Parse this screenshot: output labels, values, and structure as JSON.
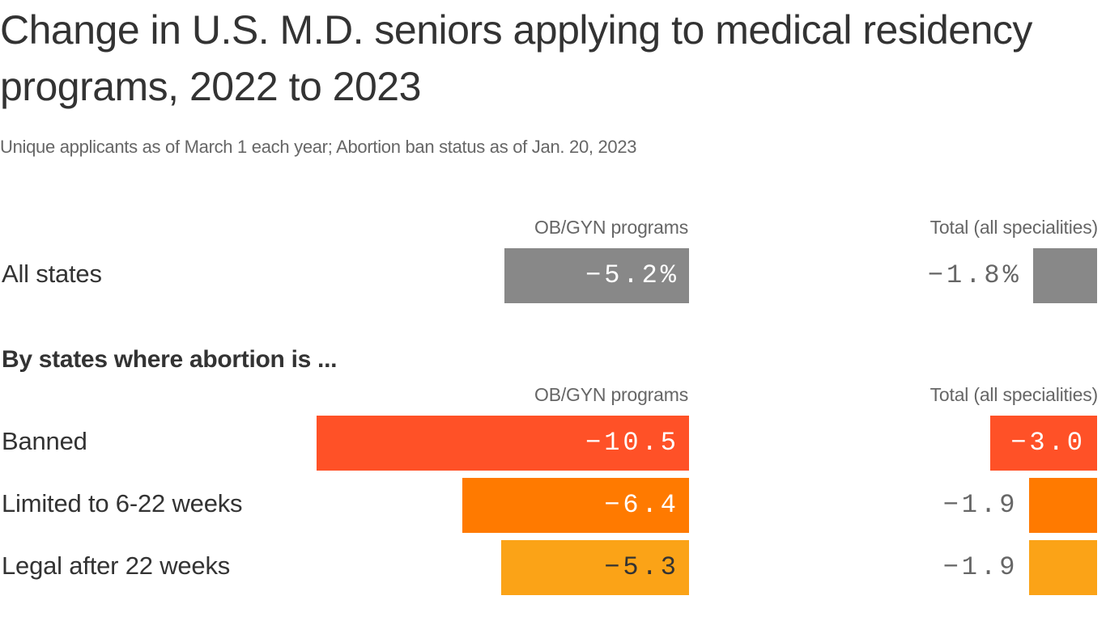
{
  "title": "Change in U.S. M.D. seniors applying to medical residency programs, 2022 to 2023",
  "subtitle": "Unique applicants as of March 1 each year; Abortion ban status as of Jan. 20, 2023",
  "section_heading": "By states where abortion is ...",
  "column_labels": {
    "obgyn": "OB/GYN programs",
    "total": "Total (all specialities)"
  },
  "colors": {
    "all_states": "#888888",
    "banned": "#ff5127",
    "limited": "#ff7a00",
    "legal": "#fba317"
  },
  "chart_data": {
    "type": "bar",
    "title": "Change in U.S. M.D. seniors applying to medical residency programs, 2022 to 2023",
    "subtitle": "Unique applicants as of March 1 each year; Abortion ban status as of Jan. 20, 2023",
    "categories": [
      "All states",
      "Banned",
      "Limited to 6-22 weeks",
      "Legal after 22 weeks"
    ],
    "series": [
      {
        "name": "OB/GYN programs",
        "values": [
          -5.2,
          -10.5,
          -6.4,
          -5.3
        ],
        "labels": [
          "-5.2%",
          "-10.5",
          "-6.4",
          "-5.3"
        ]
      },
      {
        "name": "Total (all specialities)",
        "values": [
          -1.8,
          -3.0,
          -1.9,
          -1.9
        ],
        "labels": [
          "-1.8%",
          "-3.0",
          "-1.9",
          "-1.9"
        ]
      }
    ],
    "groups": [
      {
        "heading": "",
        "categories": [
          "All states"
        ]
      },
      {
        "heading": "By states where abortion is ...",
        "categories": [
          "Banned",
          "Limited to 6-22 weeks",
          "Legal after 22 weeks"
        ]
      }
    ]
  }
}
